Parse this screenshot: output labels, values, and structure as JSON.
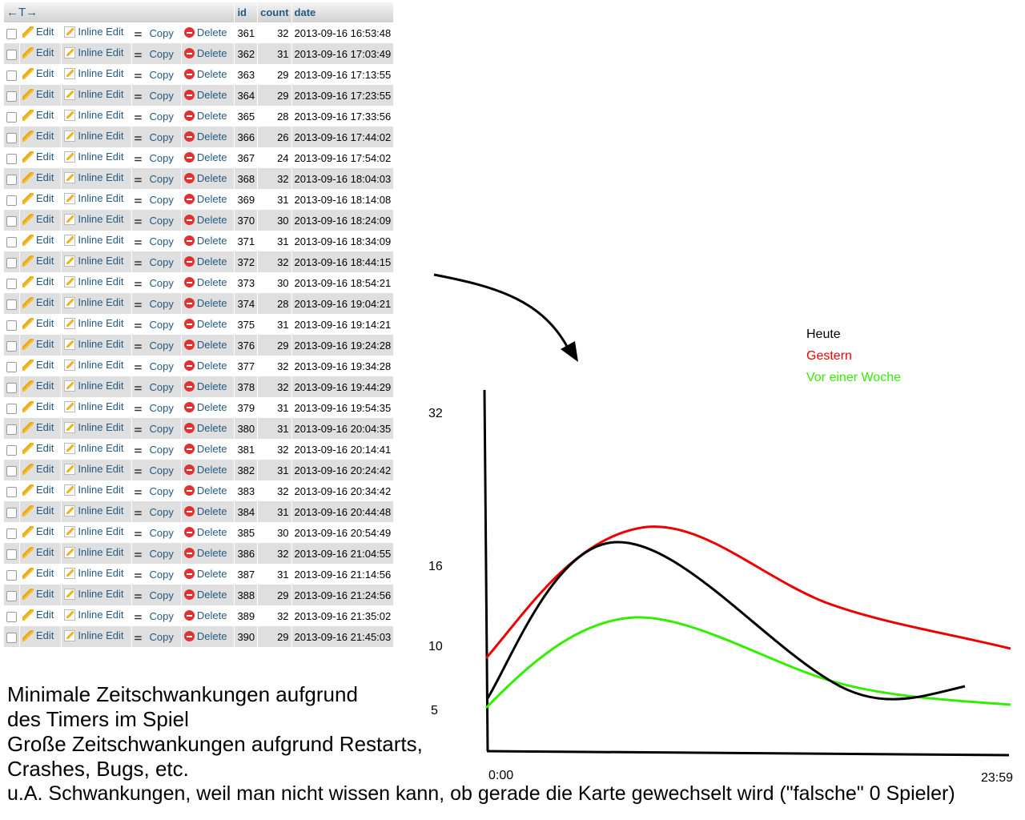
{
  "table": {
    "header_arrows": "←T→",
    "columns": [
      "id",
      "count",
      "date"
    ],
    "actions": {
      "edit": "Edit",
      "inline_edit": "Inline Edit",
      "copy": "Copy",
      "delete": "Delete"
    },
    "rows": [
      {
        "id": "361",
        "count": "32",
        "date": "2013-09-16 16:53:48"
      },
      {
        "id": "362",
        "count": "31",
        "date": "2013-09-16 17:03:49"
      },
      {
        "id": "363",
        "count": "29",
        "date": "2013-09-16 17:13:55"
      },
      {
        "id": "364",
        "count": "29",
        "date": "2013-09-16 17:23:55"
      },
      {
        "id": "365",
        "count": "28",
        "date": "2013-09-16 17:33:56"
      },
      {
        "id": "366",
        "count": "26",
        "date": "2013-09-16 17:44:02"
      },
      {
        "id": "367",
        "count": "24",
        "date": "2013-09-16 17:54:02"
      },
      {
        "id": "368",
        "count": "32",
        "date": "2013-09-16 18:04:03"
      },
      {
        "id": "369",
        "count": "31",
        "date": "2013-09-16 18:14:08"
      },
      {
        "id": "370",
        "count": "30",
        "date": "2013-09-16 18:24:09"
      },
      {
        "id": "371",
        "count": "31",
        "date": "2013-09-16 18:34:09"
      },
      {
        "id": "372",
        "count": "32",
        "date": "2013-09-16 18:44:15"
      },
      {
        "id": "373",
        "count": "30",
        "date": "2013-09-16 18:54:21"
      },
      {
        "id": "374",
        "count": "28",
        "date": "2013-09-16 19:04:21"
      },
      {
        "id": "375",
        "count": "31",
        "date": "2013-09-16 19:14:21"
      },
      {
        "id": "376",
        "count": "29",
        "date": "2013-09-16 19:24:28"
      },
      {
        "id": "377",
        "count": "32",
        "date": "2013-09-16 19:34:28"
      },
      {
        "id": "378",
        "count": "32",
        "date": "2013-09-16 19:44:29"
      },
      {
        "id": "379",
        "count": "31",
        "date": "2013-09-16 19:54:35"
      },
      {
        "id": "380",
        "count": "31",
        "date": "2013-09-16 20:04:35"
      },
      {
        "id": "381",
        "count": "32",
        "date": "2013-09-16 20:14:41"
      },
      {
        "id": "382",
        "count": "31",
        "date": "2013-09-16 20:24:42"
      },
      {
        "id": "383",
        "count": "32",
        "date": "2013-09-16 20:34:42"
      },
      {
        "id": "384",
        "count": "31",
        "date": "2013-09-16 20:44:48"
      },
      {
        "id": "385",
        "count": "30",
        "date": "2013-09-16 20:54:49"
      },
      {
        "id": "386",
        "count": "32",
        "date": "2013-09-16 21:04:55"
      },
      {
        "id": "387",
        "count": "31",
        "date": "2013-09-16 21:14:56"
      },
      {
        "id": "388",
        "count": "29",
        "date": "2013-09-16 21:24:56"
      },
      {
        "id": "389",
        "count": "32",
        "date": "2013-09-16 21:35:02"
      },
      {
        "id": "390",
        "count": "29",
        "date": "2013-09-16 21:45:03"
      }
    ]
  },
  "notes": {
    "line1": "Minimale Zeitschwankungen aufgrund",
    "line2": "des Timers im Spiel",
    "line3": "Große Zeitschwankungen aufgrund Restarts,",
    "line4": "Crashes, Bugs, etc.",
    "line5": "u.A. Schwankungen, weil man nicht wissen kann, ob gerade die Karte gewechselt wird (\"falsche\" 0 Spieler)"
  },
  "sketch": {
    "y_labels": [
      "32",
      "16",
      "10",
      "5"
    ],
    "x_start": "0:00",
    "x_end": "23:59",
    "legend": [
      {
        "name": "Heute",
        "color": "#000000"
      },
      {
        "name": "Gestern",
        "color": "#ee0000"
      },
      {
        "name": "Vor einer Woche",
        "color": "#33ee00"
      }
    ]
  }
}
